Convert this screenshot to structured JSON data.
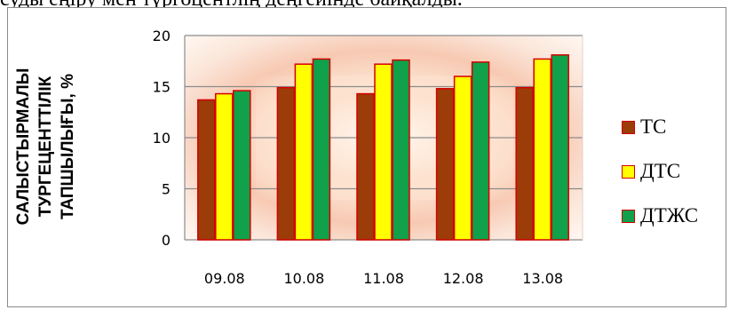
{
  "top_text": "суды еңіру мен түргоцентлің деңгейінде байқалды.",
  "chart_data": {
    "type": "bar",
    "categories": [
      "09.08",
      "10.08",
      "11.08",
      "12.08",
      "13.08"
    ],
    "series": [
      {
        "name": "ТС",
        "color": "#9b3c09",
        "values": [
          13.7,
          14.9,
          14.3,
          14.8,
          14.9
        ]
      },
      {
        "name": "ДТС",
        "color": "#ffff00",
        "values": [
          14.3,
          17.2,
          17.2,
          16.0,
          17.7
        ]
      },
      {
        "name": "ДТЖС",
        "color": "#10a14a",
        "values": [
          14.6,
          17.7,
          17.6,
          17.4,
          18.1
        ]
      }
    ],
    "ylabel_lines": [
      "САЛЫСТЫРМАЛЫ",
      "ТУРГЕЦЕНТТІЛІК",
      "ТАПШЫЛЫҒЫ, %"
    ],
    "yticks": [
      "0",
      "5",
      "10",
      "15",
      "20"
    ],
    "ylim": [
      0,
      20
    ],
    "grid": true,
    "legend_position": "right",
    "bar_border_color": "#d40000"
  }
}
